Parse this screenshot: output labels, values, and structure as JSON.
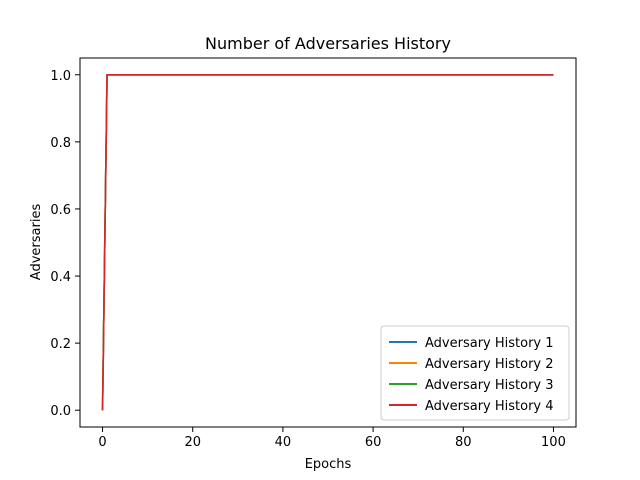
{
  "chart_data": {
    "type": "line",
    "title": "Number of Adversaries History",
    "xlabel": "Epochs",
    "ylabel": "Adversaries",
    "xlim": [
      -5,
      105
    ],
    "ylim": [
      -0.05,
      1.05
    ],
    "xticks": [
      0,
      20,
      40,
      60,
      80,
      100
    ],
    "yticks": [
      0.0,
      0.2,
      0.4,
      0.6,
      0.8,
      1.0
    ],
    "xtick_labels": [
      "0",
      "20",
      "40",
      "60",
      "80",
      "100"
    ],
    "ytick_labels": [
      "0.0",
      "0.2",
      "0.4",
      "0.6",
      "0.8",
      "1.0"
    ],
    "grid": false,
    "legend_position": "bottom-right",
    "x": [
      0,
      1,
      2,
      100
    ],
    "series": [
      {
        "name": "Adversary History 1",
        "color": "#1f77b4",
        "values": [
          0,
          1,
          1,
          1
        ]
      },
      {
        "name": "Adversary History 2",
        "color": "#ff7f0e",
        "values": [
          0,
          1,
          1,
          1
        ]
      },
      {
        "name": "Adversary History 3",
        "color": "#2ca02c",
        "values": [
          0,
          1,
          1,
          1
        ]
      },
      {
        "name": "Adversary History 4",
        "color": "#d62728",
        "values": [
          0,
          1,
          1,
          1
        ]
      }
    ]
  }
}
